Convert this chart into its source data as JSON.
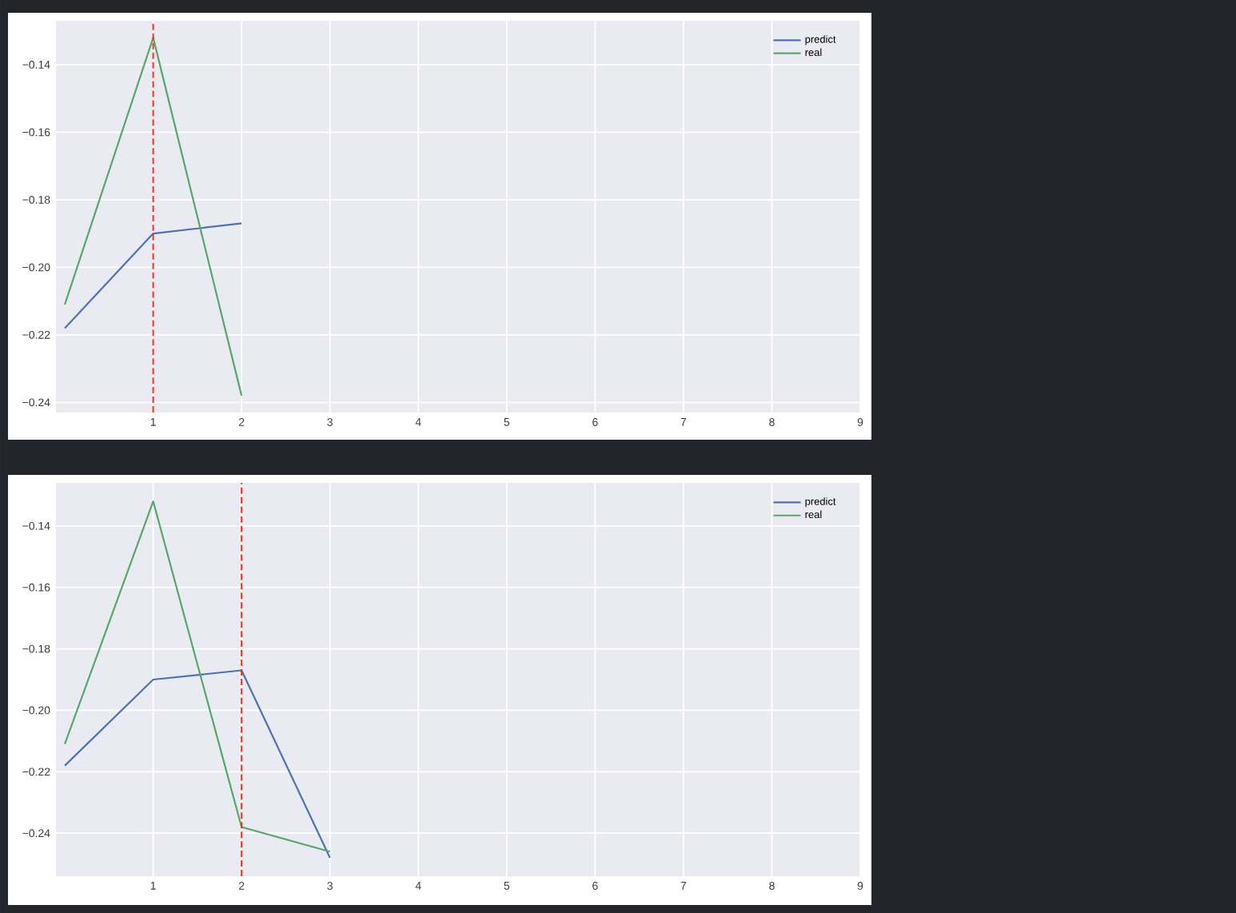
{
  "chart_data": [
    {
      "type": "line",
      "x": [
        0,
        1,
        2
      ],
      "xlim": [
        -0.1,
        9
      ],
      "xticks": [
        1,
        2,
        3,
        4,
        5,
        6,
        7,
        8,
        9
      ],
      "ylim": [
        -0.243,
        -0.127
      ],
      "yticks": [
        {
          "value": -0.14,
          "label": "−0.14"
        },
        {
          "value": -0.16,
          "label": "−0.16"
        },
        {
          "value": -0.18,
          "label": "−0.18"
        },
        {
          "value": -0.2,
          "label": "−0.20"
        },
        {
          "value": -0.22,
          "label": "−0.22"
        },
        {
          "value": -0.24,
          "label": "−0.24"
        }
      ],
      "grid": true,
      "legend": "top right",
      "series": [
        {
          "name": "predict",
          "color": "#4c72b0",
          "values": [
            -0.218,
            -0.19,
            -0.187
          ]
        },
        {
          "name": "real",
          "color": "#55a868",
          "values": [
            -0.211,
            -0.132,
            -0.238
          ]
        }
      ],
      "ref_lines": [
        {
          "axis": "x",
          "value": 1,
          "color": "#ff2a1a",
          "line_style": "dashed"
        }
      ]
    },
    {
      "type": "line",
      "x": [
        0,
        1,
        2,
        3
      ],
      "xlim": [
        -0.1,
        9
      ],
      "xticks": [
        1,
        2,
        3,
        4,
        5,
        6,
        7,
        8,
        9
      ],
      "ylim": [
        -0.254,
        -0.126
      ],
      "yticks": [
        {
          "value": -0.14,
          "label": "−0.14"
        },
        {
          "value": -0.16,
          "label": "−0.16"
        },
        {
          "value": -0.18,
          "label": "−0.18"
        },
        {
          "value": -0.2,
          "label": "−0.20"
        },
        {
          "value": -0.22,
          "label": "−0.22"
        },
        {
          "value": -0.24,
          "label": "−0.24"
        }
      ],
      "grid": true,
      "legend": "top right",
      "series": [
        {
          "name": "predict",
          "color": "#4c72b0",
          "values": [
            -0.218,
            -0.19,
            -0.187,
            -0.248
          ]
        },
        {
          "name": "real",
          "color": "#55a868",
          "values": [
            -0.211,
            -0.132,
            -0.238,
            -0.246
          ]
        }
      ],
      "ref_lines": [
        {
          "axis": "x",
          "value": 2,
          "color": "#ff2a1a",
          "line_style": "dashed"
        }
      ]
    }
  ]
}
